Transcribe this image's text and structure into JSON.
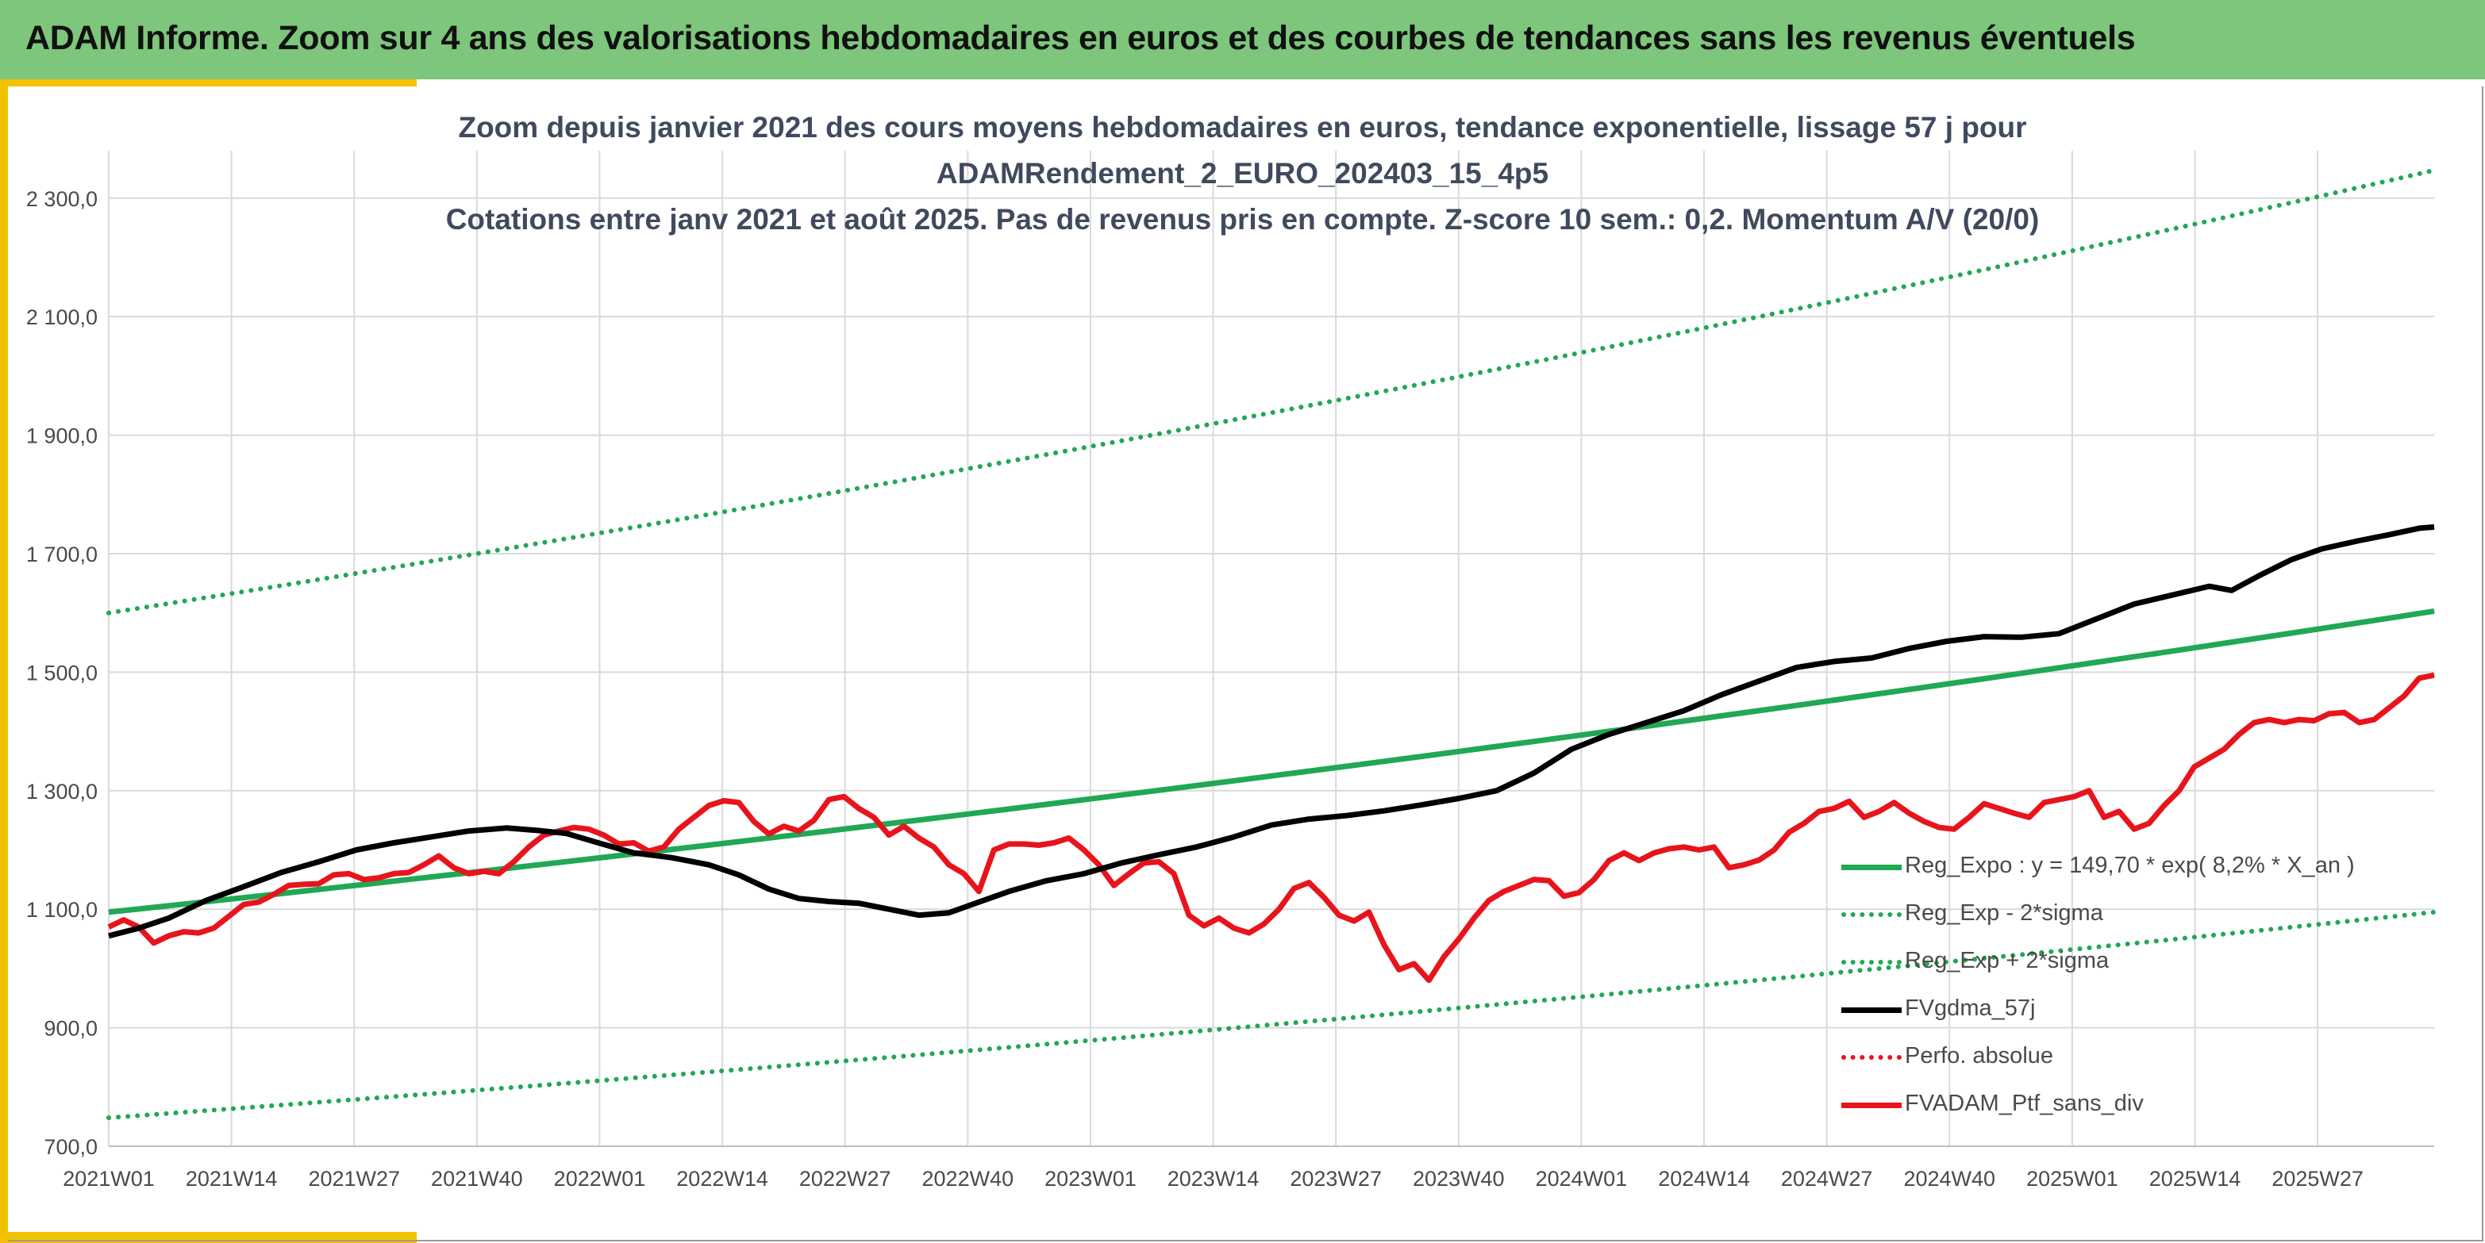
{
  "header": {
    "title": "ADAM Informe. Zoom sur 4 ans des valorisations hebdomadaires en euros et des courbes de tendances sans les revenus éventuels"
  },
  "colors": {
    "header_bg": "#7dc67b",
    "accent": "#f2c200",
    "trend": "#21a854",
    "ma": "#000000",
    "price": "#e8141c",
    "perf": "#e8141c"
  },
  "chart_data": {
    "type": "line",
    "title": "Zoom depuis janvier 2021 des cours moyens hebdomadaires en euros, tendance exponentielle, lissage 57 j pour",
    "subtitle": [
      "ADAMRendement_2_EURO_202403_15_4p5",
      "Cotations entre janv 2021 et août 2025. Pas de revenus pris en compte. Z-score 10 sem.: 0,2. Momentum A/V (20/0)"
    ],
    "x_ticks": [
      "2021W01",
      "2021W14",
      "2021W27",
      "2021W40",
      "2022W01",
      "2022W14",
      "2022W27",
      "2022W40",
      "2023W01",
      "2023W14",
      "2023W27",
      "2023W40",
      "2024W01",
      "2024W14",
      "2024W27",
      "2024W40",
      "2025W01",
      "2025W14",
      "2025W27"
    ],
    "y_ticks": [
      "700,0",
      "900,0",
      "1 100,0",
      "1 300,0",
      "1 500,0",
      "1 700,0",
      "1 900,0",
      "2 100,0",
      "2 300,0"
    ],
    "ylim": [
      700,
      2380
    ],
    "grid": true,
    "legend_position": "bottom-right",
    "trend_line": {
      "start": 1095,
      "end": 1603
    },
    "lower_band": {
      "start": 748,
      "end": 1095
    },
    "upper_band": {
      "start": 1600,
      "end": 2347
    },
    "series": [
      {
        "name": "Reg_Expo : y = 149,70 * exp( 8,2% *  X_an )",
        "style": "solid-green"
      },
      {
        "name": "Reg_Exp - 2*sigma",
        "style": "dotted-green"
      },
      {
        "name": "Reg_Exp + 2*sigma",
        "style": "dotted-green"
      },
      {
        "name": "FVgdma_57j",
        "style": "solid-black",
        "points": [
          [
            0,
            1055
          ],
          [
            4,
            1068
          ],
          [
            8,
            1085
          ],
          [
            13,
            1115
          ],
          [
            18,
            1138
          ],
          [
            23,
            1162
          ],
          [
            28,
            1180
          ],
          [
            33,
            1200
          ],
          [
            38,
            1212
          ],
          [
            43,
            1222
          ],
          [
            48,
            1232
          ],
          [
            53,
            1237
          ],
          [
            57,
            1233
          ],
          [
            61,
            1228
          ],
          [
            65,
            1213
          ],
          [
            70,
            1195
          ],
          [
            75,
            1187
          ],
          [
            80,
            1175
          ],
          [
            84,
            1158
          ],
          [
            88,
            1134
          ],
          [
            92,
            1118
          ],
          [
            96,
            1113
          ],
          [
            100,
            1110
          ],
          [
            104,
            1100
          ],
          [
            108,
            1090
          ],
          [
            112,
            1094
          ],
          [
            116,
            1112
          ],
          [
            120,
            1130
          ],
          [
            125,
            1148
          ],
          [
            130,
            1160
          ],
          [
            135,
            1178
          ],
          [
            140,
            1192
          ],
          [
            145,
            1205
          ],
          [
            150,
            1222
          ],
          [
            155,
            1242
          ],
          [
            160,
            1252
          ],
          [
            165,
            1258
          ],
          [
            170,
            1266
          ],
          [
            175,
            1276
          ],
          [
            180,
            1287
          ],
          [
            185,
            1300
          ],
          [
            190,
            1330
          ],
          [
            195,
            1370
          ],
          [
            200,
            1395
          ],
          [
            205,
            1415
          ],
          [
            210,
            1435
          ],
          [
            215,
            1462
          ],
          [
            220,
            1485
          ],
          [
            225,
            1508
          ],
          [
            230,
            1518
          ],
          [
            235,
            1524
          ],
          [
            240,
            1540
          ],
          [
            245,
            1552
          ],
          [
            250,
            1560
          ],
          [
            255,
            1559
          ],
          [
            260,
            1565
          ],
          [
            265,
            1590
          ],
          [
            270,
            1615
          ],
          [
            275,
            1630
          ],
          [
            280,
            1645
          ],
          [
            283,
            1638
          ],
          [
            287,
            1665
          ],
          [
            291,
            1690
          ],
          [
            295,
            1708
          ],
          [
            300,
            1722
          ],
          [
            304,
            1732
          ],
          [
            308,
            1743
          ],
          [
            310,
            1745
          ]
        ]
      },
      {
        "name": "Perfo. absolue",
        "style": "dotted-red"
      },
      {
        "name": "FVADAM_Ptf_sans_div",
        "style": "solid-red",
        "points": [
          [
            0,
            1070
          ],
          [
            2,
            1082
          ],
          [
            4,
            1070
          ],
          [
            6,
            1043
          ],
          [
            8,
            1055
          ],
          [
            10,
            1062
          ],
          [
            12,
            1060
          ],
          [
            14,
            1068
          ],
          [
            16,
            1088
          ],
          [
            18,
            1108
          ],
          [
            20,
            1112
          ],
          [
            22,
            1125
          ],
          [
            24,
            1140
          ],
          [
            26,
            1142
          ],
          [
            28,
            1143
          ],
          [
            30,
            1158
          ],
          [
            32,
            1160
          ],
          [
            34,
            1150
          ],
          [
            36,
            1153
          ],
          [
            38,
            1160
          ],
          [
            40,
            1162
          ],
          [
            42,
            1175
          ],
          [
            44,
            1190
          ],
          [
            46,
            1170
          ],
          [
            48,
            1160
          ],
          [
            50,
            1164
          ],
          [
            52,
            1160
          ],
          [
            54,
            1180
          ],
          [
            56,
            1205
          ],
          [
            58,
            1225
          ],
          [
            60,
            1232
          ],
          [
            62,
            1238
          ],
          [
            64,
            1235
          ],
          [
            66,
            1225
          ],
          [
            68,
            1210
          ],
          [
            70,
            1212
          ],
          [
            72,
            1198
          ],
          [
            74,
            1205
          ],
          [
            76,
            1235
          ],
          [
            78,
            1255
          ],
          [
            80,
            1275
          ],
          [
            82,
            1283
          ],
          [
            84,
            1280
          ],
          [
            86,
            1248
          ],
          [
            88,
            1227
          ],
          [
            90,
            1240
          ],
          [
            92,
            1232
          ],
          [
            94,
            1250
          ],
          [
            96,
            1285
          ],
          [
            98,
            1290
          ],
          [
            100,
            1270
          ],
          [
            102,
            1255
          ],
          [
            104,
            1225
          ],
          [
            106,
            1240
          ],
          [
            108,
            1220
          ],
          [
            110,
            1205
          ],
          [
            112,
            1175
          ],
          [
            114,
            1160
          ],
          [
            116,
            1130
          ],
          [
            118,
            1200
          ],
          [
            120,
            1210
          ],
          [
            122,
            1210
          ],
          [
            124,
            1208
          ],
          [
            126,
            1212
          ],
          [
            128,
            1220
          ],
          [
            130,
            1200
          ],
          [
            132,
            1175
          ],
          [
            134,
            1140
          ],
          [
            136,
            1160
          ],
          [
            138,
            1178
          ],
          [
            140,
            1180
          ],
          [
            142,
            1160
          ],
          [
            144,
            1090
          ],
          [
            146,
            1072
          ],
          [
            148,
            1085
          ],
          [
            150,
            1068
          ],
          [
            152,
            1060
          ],
          [
            154,
            1075
          ],
          [
            156,
            1100
          ],
          [
            158,
            1135
          ],
          [
            160,
            1145
          ],
          [
            162,
            1120
          ],
          [
            164,
            1090
          ],
          [
            166,
            1080
          ],
          [
            168,
            1095
          ],
          [
            170,
            1040
          ],
          [
            172,
            998
          ],
          [
            174,
            1008
          ],
          [
            176,
            980
          ],
          [
            178,
            1020
          ],
          [
            180,
            1050
          ],
          [
            182,
            1085
          ],
          [
            184,
            1115
          ],
          [
            186,
            1130
          ],
          [
            188,
            1140
          ],
          [
            190,
            1150
          ],
          [
            192,
            1148
          ],
          [
            194,
            1122
          ],
          [
            196,
            1128
          ],
          [
            198,
            1150
          ],
          [
            200,
            1182
          ],
          [
            202,
            1195
          ],
          [
            204,
            1182
          ],
          [
            206,
            1195
          ],
          [
            208,
            1202
          ],
          [
            210,
            1205
          ],
          [
            212,
            1200
          ],
          [
            214,
            1205
          ],
          [
            216,
            1170
          ],
          [
            218,
            1175
          ],
          [
            220,
            1183
          ],
          [
            222,
            1200
          ],
          [
            224,
            1230
          ],
          [
            226,
            1245
          ],
          [
            228,
            1265
          ],
          [
            230,
            1270
          ],
          [
            232,
            1282
          ],
          [
            234,
            1255
          ],
          [
            236,
            1265
          ],
          [
            238,
            1280
          ],
          [
            240,
            1262
          ],
          [
            242,
            1248
          ],
          [
            244,
            1238
          ],
          [
            246,
            1235
          ],
          [
            248,
            1255
          ],
          [
            250,
            1278
          ],
          [
            252,
            1270
          ],
          [
            254,
            1262
          ],
          [
            256,
            1255
          ],
          [
            258,
            1280
          ],
          [
            260,
            1285
          ],
          [
            262,
            1290
          ],
          [
            264,
            1300
          ],
          [
            266,
            1255
          ],
          [
            268,
            1265
          ],
          [
            270,
            1235
          ],
          [
            272,
            1245
          ],
          [
            274,
            1275
          ],
          [
            276,
            1300
          ],
          [
            278,
            1340
          ],
          [
            280,
            1355
          ],
          [
            282,
            1370
          ],
          [
            284,
            1395
          ],
          [
            286,
            1415
          ],
          [
            288,
            1420
          ],
          [
            290,
            1415
          ],
          [
            292,
            1420
          ],
          [
            294,
            1418
          ],
          [
            296,
            1430
          ],
          [
            298,
            1432
          ],
          [
            300,
            1415
          ],
          [
            302,
            1420
          ],
          [
            304,
            1440
          ],
          [
            306,
            1460
          ],
          [
            308,
            1490
          ],
          [
            310,
            1495
          ]
        ]
      }
    ]
  },
  "legend": [
    {
      "label": "Reg_Expo : y = 149,70 * exp( 8,2% *  X_an )",
      "swatch": "solid-green"
    },
    {
      "label": "Reg_Exp - 2*sigma",
      "swatch": "dotted-green"
    },
    {
      "label": "Reg_Exp + 2*sigma",
      "swatch": "dotted-green"
    },
    {
      "label": "FVgdma_57j",
      "swatch": "solid-black"
    },
    {
      "label": "Perfo. absolue",
      "swatch": "dotted-red"
    },
    {
      "label": "FVADAM_Ptf_sans_div",
      "swatch": "solid-red"
    }
  ]
}
